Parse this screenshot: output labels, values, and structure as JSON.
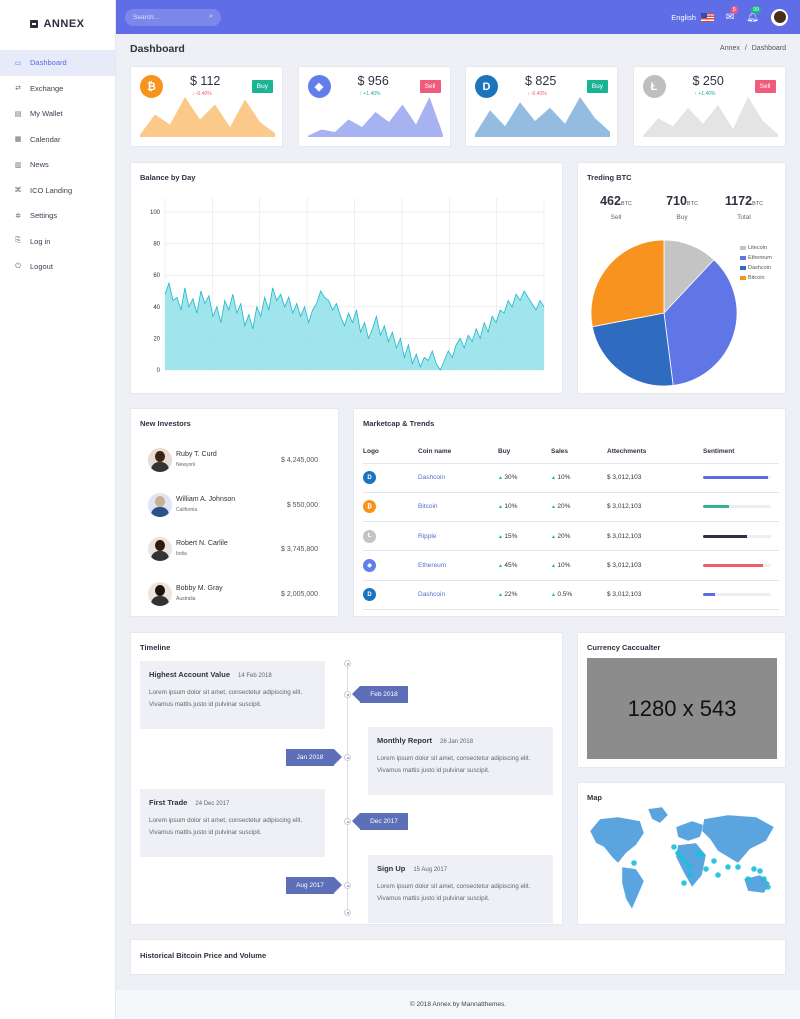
{
  "brand": {
    "name": "ANNEX"
  },
  "sidebar": {
    "items": [
      {
        "label": "Dashboard",
        "icon": "monitor-icon",
        "glyph": "▭",
        "active": true
      },
      {
        "label": "Exchange",
        "icon": "exchange-icon",
        "glyph": "⇄"
      },
      {
        "label": "My Wallet",
        "icon": "wallet-icon",
        "glyph": "▤"
      },
      {
        "label": "Calendar",
        "icon": "calendar-icon",
        "glyph": "▦"
      },
      {
        "label": "News",
        "icon": "news-icon",
        "glyph": "▥"
      },
      {
        "label": "ICO Landing",
        "icon": "ico-icon",
        "glyph": "⌘"
      },
      {
        "label": "Settings",
        "icon": "gear-icon",
        "glyph": "✲"
      },
      {
        "label": "Log in",
        "icon": "login-icon",
        "glyph": "⎘"
      },
      {
        "label": "Logout",
        "icon": "power-icon",
        "glyph": "⏻"
      }
    ]
  },
  "topbar": {
    "search_placeholder": "Search...",
    "language": "English",
    "mail_badge": "5",
    "bell_badge": "99",
    "colors": {
      "bar": "#5f6ee6",
      "mail_badge": "#ef5b7b",
      "bell_badge": "#1ab394"
    }
  },
  "page": {
    "title": "Dashboard",
    "breadcrumb": [
      "Annex",
      "/",
      "Dashboard"
    ]
  },
  "tickers": [
    {
      "symbol": "₿",
      "price": "$ 112",
      "change": "↓ -0.40%",
      "direction": "down",
      "action": "Buy",
      "coin_color": "#f7931a",
      "fill": "#fbc98a",
      "action_color": "#1ab394",
      "values": [
        2,
        18,
        10,
        32,
        14,
        26,
        8,
        30,
        12,
        3
      ]
    },
    {
      "symbol": "◆",
      "price": "$ 956",
      "change": "↑ +1.40%",
      "direction": "up",
      "action": "Sell",
      "coin_color": "#627eea",
      "fill": "#a6b3f0",
      "action_color": "#ef5b7b",
      "values": [
        1,
        6,
        4,
        14,
        8,
        20,
        12,
        26,
        10,
        32,
        2
      ]
    },
    {
      "symbol": "D",
      "price": "$ 825",
      "change": "↓ -0.40%",
      "direction": "down",
      "action": "Buy",
      "coin_color": "#1c75bc",
      "fill": "#93bce0",
      "action_color": "#1ab394",
      "values": [
        2,
        20,
        8,
        26,
        12,
        22,
        10,
        30,
        14,
        4
      ]
    },
    {
      "symbol": "Ł",
      "price": "$ 250",
      "change": "↑ +1.40%",
      "direction": "up",
      "action": "Sell",
      "coin_color": "#bebebe",
      "fill": "#e4e4e4",
      "action_color": "#ef5b7b",
      "values": [
        1,
        14,
        8,
        22,
        10,
        24,
        6,
        30,
        12,
        2
      ]
    }
  ],
  "balance": {
    "title": "Balance by Day",
    "chart_data": {
      "type": "area",
      "ylim": [
        0,
        100
      ],
      "yticks": [
        "100",
        "80",
        "60",
        "40",
        "20",
        "0"
      ],
      "fill": "#8ee0e8",
      "stroke": "#1cb8cc",
      "values": [
        48,
        55,
        44,
        46,
        38,
        52,
        40,
        45,
        36,
        50,
        42,
        47,
        34,
        40,
        30,
        44,
        38,
        48,
        36,
        42,
        28,
        35,
        26,
        40,
        34,
        46,
        38,
        52,
        44,
        48,
        40,
        46,
        36,
        42,
        34,
        40,
        30,
        38,
        42,
        50,
        46,
        44,
        38,
        42,
        34,
        28,
        36,
        30,
        38,
        24,
        30,
        20,
        26,
        34,
        22,
        28,
        18,
        24,
        14,
        20,
        8,
        16,
        4,
        10,
        2,
        8,
        6,
        12,
        4,
        0,
        6,
        12,
        8,
        16,
        20,
        14,
        22,
        18,
        26,
        20,
        30,
        24,
        34,
        30,
        38,
        36,
        44,
        40,
        48,
        44,
        50,
        46,
        42,
        38,
        44,
        40
      ]
    }
  },
  "trending": {
    "title": "Treding BTC",
    "stats": [
      {
        "value": "462",
        "unit": "BTC",
        "label": "Sell"
      },
      {
        "value": "710",
        "unit": "BTC",
        "label": "Buy"
      },
      {
        "value": "1172",
        "unit": "BTC",
        "label": "Total"
      }
    ],
    "legend": [
      {
        "name": "Litecoin",
        "color": "#c4c4c4"
      },
      {
        "name": "Ethereum",
        "color": "#6076e6"
      },
      {
        "name": "Dashcoin",
        "color": "#2f6cc0"
      },
      {
        "name": "Bitcoin",
        "color": "#f7931e"
      }
    ],
    "chart_data": {
      "type": "pie",
      "slices": [
        {
          "name": "Litecoin",
          "value": 12
        },
        {
          "name": "Ethereum",
          "value": 36
        },
        {
          "name": "Dashcoin",
          "value": 24
        },
        {
          "name": "Bitcoin",
          "value": 28
        }
      ]
    }
  },
  "investors": {
    "title": "New Investors",
    "items": [
      {
        "name": "Ruby T. Curd",
        "location": "Newyork",
        "amount": "$ 4,245,000"
      },
      {
        "name": "William A. Johnson",
        "location": "California",
        "amount": "$ 550,000"
      },
      {
        "name": "Robert N. Carlile",
        "location": "India",
        "amount": "$ 3,745,800"
      },
      {
        "name": "Bobby M. Gray",
        "location": "Australia",
        "amount": "$ 2,005,000"
      }
    ]
  },
  "market": {
    "title": "Marketcap & Trends",
    "headers": [
      "Logo",
      "Coin name",
      "Buy",
      "Sales",
      "Attechments",
      "Sentiment"
    ],
    "rows": [
      {
        "logo": "dash-logo-icon",
        "glyph": "D",
        "logo_color": "#1c75bc",
        "coin": "Dashcoin",
        "buy": "30%",
        "sales": "10%",
        "attach": "$ 3,012,103",
        "sentiment": 0.95,
        "bar_color": "#5b6be0"
      },
      {
        "logo": "bitcoin-logo-icon",
        "glyph": "₿",
        "logo_color": "#f7931a",
        "coin": "Bitcoin",
        "buy": "10%",
        "sales": "20%",
        "attach": "$ 3,012,103",
        "sentiment": 0.38,
        "bar_color": "#35b094"
      },
      {
        "logo": "ripple-logo-icon",
        "glyph": "Ł",
        "logo_color": "#c4c4c4",
        "coin": "Ripple",
        "buy": "15%",
        "sales": "20%",
        "attach": "$ 3,012,103",
        "sentiment": 0.65,
        "bar_color": "#2f323e"
      },
      {
        "logo": "ethereum-logo-icon",
        "glyph": "◆",
        "logo_color": "#627eea",
        "coin": "Ethereum",
        "buy": "45%",
        "sales": "10%",
        "attach": "$ 3,012,103",
        "sentiment": 0.88,
        "bar_color": "#ef5b6b"
      },
      {
        "logo": "dash-logo-icon",
        "glyph": "D",
        "logo_color": "#1c75bc",
        "coin": "Dashcoin",
        "buy": "22%",
        "sales": "0.5%",
        "attach": "$ 3,012,103",
        "sentiment": 0.17,
        "bar_color": "#5b6be0"
      }
    ]
  },
  "timeline": {
    "title": "Timeline",
    "events": [
      {
        "heading": "Highest Account Value",
        "date": "14 Feb 2018",
        "text": "Lorem ipsum dolor sit amet, consectetur adipiscing elit. Vivamus mattis justo id pulvinar suscipit.",
        "tag": "Feb 2018"
      },
      {
        "heading": "Monthly Report",
        "date": "26 Jan 2018",
        "text": "Lorem ipsum dolor sit amet, consectetur adipiscing elit. Vivamus mattis justo id pulvinar suscipit.",
        "tag": "Jan 2018"
      },
      {
        "heading": "First Trade",
        "date": "24 Dec 2017",
        "text": "Lorem ipsum dolor sit amet, consectetur adipiscing elit. Vivamus mattis justo id pulvinar suscipit.",
        "tag": "Dec 2017"
      },
      {
        "heading": "Sign Up",
        "date": "15 Aug 2017",
        "text": "Lorem ipsum dolor sit amet, consectetur adipiscing elit. Vivamus mattis justo id pulvinar suscipit.",
        "tag": "Aug 2017"
      }
    ]
  },
  "calculator": {
    "title": "Currency Caccualter",
    "placeholder_text": "1280 x 543"
  },
  "map": {
    "title": "Map",
    "land_color": "#5aa5e0",
    "marker_color": "#1ac0d8"
  },
  "historical": {
    "title": "Historical Bitcoin Price and Volume"
  },
  "footer": {
    "text": "© 2018 Annex by Mannatthemes."
  }
}
